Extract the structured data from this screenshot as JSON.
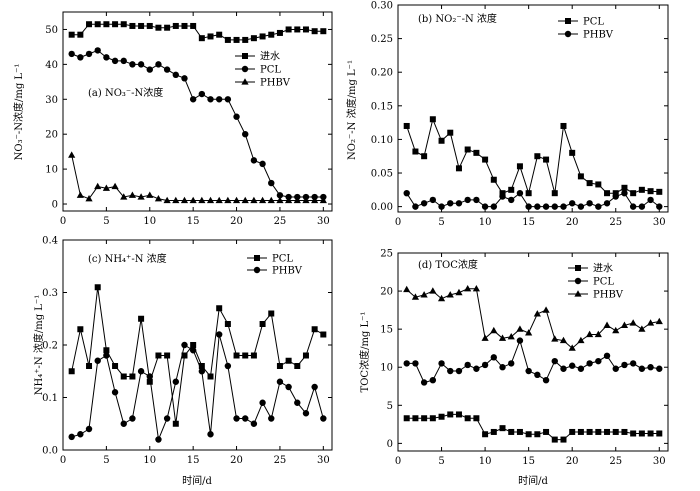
{
  "chart_data": [
    {
      "type": "line",
      "panel_label": "(a) NO₃⁻-N浓度",
      "xlabel": "",
      "ylabel": "NO₃⁻-N浓度/mg L⁻¹",
      "xlim": [
        0,
        31
      ],
      "ylim": [
        -2,
        55
      ],
      "xticks": [
        0,
        5,
        10,
        15,
        20,
        25,
        30
      ],
      "yticks": [
        0,
        10,
        20,
        30,
        40,
        50
      ],
      "legend_position": "top-right",
      "series": [
        {
          "name": "进水",
          "marker": "square",
          "x": [
            1,
            2,
            3,
            4,
            5,
            6,
            7,
            8,
            9,
            10,
            11,
            12,
            13,
            14,
            15,
            16,
            17,
            18,
            19,
            20,
            21,
            22,
            23,
            24,
            25,
            26,
            27,
            28,
            29,
            30
          ],
          "y": [
            48.5,
            48.5,
            51.5,
            51.5,
            51.5,
            51.5,
            51.5,
            51,
            51,
            51,
            50.5,
            50.5,
            51,
            51,
            51,
            47.5,
            48,
            48.5,
            47,
            47,
            47,
            47.5,
            48,
            48.5,
            49,
            50,
            50,
            50,
            49.5,
            49.5
          ]
        },
        {
          "name": "PCL",
          "marker": "circle",
          "x": [
            1,
            2,
            3,
            4,
            5,
            6,
            7,
            8,
            9,
            10,
            11,
            12,
            13,
            14,
            15,
            16,
            17,
            18,
            19,
            20,
            21,
            22,
            23,
            24,
            25,
            26,
            27,
            28,
            29,
            30
          ],
          "y": [
            43,
            42,
            43,
            44,
            42,
            41,
            41,
            40,
            40,
            38.5,
            40,
            38.5,
            37,
            36,
            30,
            31.5,
            30,
            30,
            30,
            25,
            20,
            12.5,
            11.5,
            6,
            2.5,
            2,
            2,
            2,
            2,
            2
          ]
        },
        {
          "name": "PHBV",
          "marker": "triangle",
          "x": [
            1,
            2,
            3,
            4,
            5,
            6,
            7,
            8,
            9,
            10,
            11,
            12,
            13,
            14,
            15,
            16,
            17,
            18,
            19,
            20,
            21,
            22,
            23,
            24,
            25,
            26,
            27,
            28,
            29,
            30
          ],
          "y": [
            14,
            2.5,
            1.5,
            5,
            4.5,
            5,
            2,
            2.5,
            2,
            2.5,
            1.5,
            1,
            1,
            1,
            1,
            1,
            1,
            1,
            1,
            1,
            1,
            1,
            1,
            1,
            1,
            1,
            1,
            1,
            1,
            1
          ]
        }
      ]
    },
    {
      "type": "line",
      "panel_label": "(b) NO₂⁻-N 浓度",
      "xlabel": "",
      "ylabel": "NO₂⁻-N 浓度/mg L⁻¹",
      "xlim": [
        0,
        31
      ],
      "ylim": [
        -0.008,
        0.3
      ],
      "xticks": [
        0,
        5,
        10,
        15,
        20,
        25,
        30
      ],
      "yticks": [
        0.0,
        0.05,
        0.1,
        0.15,
        0.2,
        0.25,
        0.3
      ],
      "legend_position": "top-right",
      "series": [
        {
          "name": "PCL",
          "marker": "square",
          "x": [
            1,
            2,
            3,
            4,
            5,
            6,
            7,
            8,
            9,
            10,
            11,
            12,
            13,
            14,
            15,
            16,
            17,
            18,
            19,
            20,
            21,
            22,
            23,
            24,
            25,
            26,
            27,
            28,
            29,
            30
          ],
          "y": [
            0.12,
            0.082,
            0.075,
            0.13,
            0.098,
            0.11,
            0.057,
            0.085,
            0.08,
            0.07,
            0.04,
            0.02,
            0.025,
            0.06,
            0.02,
            0.075,
            0.07,
            0.02,
            0.12,
            0.08,
            0.045,
            0.035,
            0.033,
            0.02,
            0.02,
            0.028,
            0.02,
            0.025,
            0.023,
            0.022
          ]
        },
        {
          "name": "PHBV",
          "marker": "circle",
          "x": [
            1,
            2,
            3,
            4,
            5,
            6,
            7,
            8,
            9,
            10,
            11,
            12,
            13,
            14,
            15,
            16,
            17,
            18,
            19,
            20,
            21,
            22,
            23,
            24,
            25,
            26,
            27,
            28,
            29,
            30
          ],
          "y": [
            0.02,
            0,
            0.005,
            0.01,
            0,
            0.005,
            0.005,
            0.01,
            0.01,
            0,
            0,
            0.015,
            0.01,
            0.02,
            0,
            0,
            0,
            0,
            0,
            0.005,
            0,
            0.005,
            0,
            0.005,
            0.015,
            0.02,
            0,
            0,
            0.01,
            0
          ]
        }
      ]
    },
    {
      "type": "line",
      "panel_label": "(c) NH₄⁺-N 浓度",
      "xlabel": "时间/d",
      "ylabel": "NH₄⁺-N 浓度/mg L⁻¹",
      "xlim": [
        0,
        31
      ],
      "ylim": [
        0,
        0.4
      ],
      "xticks": [
        0,
        5,
        10,
        15,
        20,
        25,
        30
      ],
      "yticks": [
        0.0,
        0.1,
        0.2,
        0.3,
        0.4
      ],
      "legend_position": "top-right",
      "series": [
        {
          "name": "PCL",
          "marker": "square",
          "x": [
            1,
            2,
            3,
            4,
            5,
            6,
            7,
            8,
            9,
            10,
            11,
            12,
            13,
            14,
            15,
            16,
            17,
            18,
            19,
            20,
            21,
            22,
            23,
            24,
            25,
            26,
            27,
            28,
            29,
            30
          ],
          "y": [
            0.15,
            0.23,
            0.16,
            0.31,
            0.19,
            0.16,
            0.14,
            0.14,
            0.25,
            0.13,
            0.18,
            0.18,
            0.05,
            0.18,
            0.2,
            0.16,
            0.14,
            0.27,
            0.24,
            0.18,
            0.18,
            0.18,
            0.24,
            0.26,
            0.16,
            0.17,
            0.16,
            0.18,
            0.23,
            0.22
          ]
        },
        {
          "name": "PHBV",
          "marker": "circle",
          "x": [
            1,
            2,
            3,
            4,
            5,
            6,
            7,
            8,
            9,
            10,
            11,
            12,
            13,
            14,
            15,
            16,
            17,
            18,
            19,
            20,
            21,
            22,
            23,
            24,
            25,
            26,
            27,
            28,
            29,
            30
          ],
          "y": [
            0.025,
            0.03,
            0.04,
            0.17,
            0.18,
            0.11,
            0.05,
            0.06,
            0.15,
            0.14,
            0.02,
            0.06,
            0.13,
            0.2,
            0.19,
            0.15,
            0.03,
            0.22,
            0.16,
            0.06,
            0.06,
            0.05,
            0.09,
            0.06,
            0.13,
            0.12,
            0.09,
            0.07,
            0.12,
            0.06
          ]
        }
      ]
    },
    {
      "type": "line",
      "panel_label": "(d) TOC浓度",
      "xlabel": "时间/d",
      "ylabel": "TOC浓度/mg L⁻¹",
      "xlim": [
        0,
        31
      ],
      "ylim": [
        -1,
        25
      ],
      "xticks": [
        0,
        5,
        10,
        15,
        20,
        25,
        30
      ],
      "yticks": [
        0,
        5,
        10,
        15,
        20,
        25
      ],
      "legend_position": "top-right",
      "series": [
        {
          "name": "进水",
          "marker": "square",
          "x": [
            1,
            2,
            3,
            4,
            5,
            6,
            7,
            8,
            9,
            10,
            11,
            12,
            13,
            14,
            15,
            16,
            17,
            18,
            19,
            20,
            21,
            22,
            23,
            24,
            25,
            26,
            27,
            28,
            29,
            30
          ],
          "y": [
            3.3,
            3.3,
            3.3,
            3.3,
            3.5,
            3.8,
            3.8,
            3.3,
            3.3,
            1.2,
            1.5,
            2,
            1.5,
            1.5,
            1.2,
            1.2,
            1.5,
            0.5,
            0.5,
            1.5,
            1.5,
            1.5,
            1.5,
            1.5,
            1.5,
            1.5,
            1.3,
            1.3,
            1.3,
            1.3
          ]
        },
        {
          "name": "PCL",
          "marker": "circle",
          "x": [
            1,
            2,
            3,
            4,
            5,
            6,
            7,
            8,
            9,
            10,
            11,
            12,
            13,
            14,
            15,
            16,
            17,
            18,
            19,
            20,
            21,
            22,
            23,
            24,
            25,
            26,
            27,
            28,
            29,
            30
          ],
          "y": [
            10.5,
            10.5,
            8,
            8.3,
            10.5,
            9.5,
            9.5,
            10.3,
            9.8,
            10.3,
            11.3,
            10,
            10.5,
            13.5,
            9.5,
            9,
            8.3,
            10.8,
            9.8,
            10.2,
            9.8,
            10.5,
            10.8,
            11.5,
            9.8,
            10.3,
            10.5,
            9.8,
            10,
            9.8
          ]
        },
        {
          "name": "PHBV",
          "marker": "triangle",
          "x": [
            1,
            2,
            3,
            4,
            5,
            6,
            7,
            8,
            9,
            10,
            11,
            12,
            13,
            14,
            15,
            16,
            17,
            18,
            19,
            20,
            21,
            22,
            23,
            24,
            25,
            26,
            27,
            28,
            29,
            30
          ],
          "y": [
            20.2,
            19.2,
            19.5,
            20,
            19,
            19.5,
            19.8,
            20.3,
            20.3,
            13.8,
            14.8,
            13.8,
            14,
            15,
            14.5,
            17,
            17.5,
            13.7,
            13.5,
            12.5,
            13.5,
            14.3,
            14.3,
            15.5,
            14.8,
            15.5,
            15.8,
            15,
            15.8,
            16
          ]
        }
      ]
    }
  ]
}
